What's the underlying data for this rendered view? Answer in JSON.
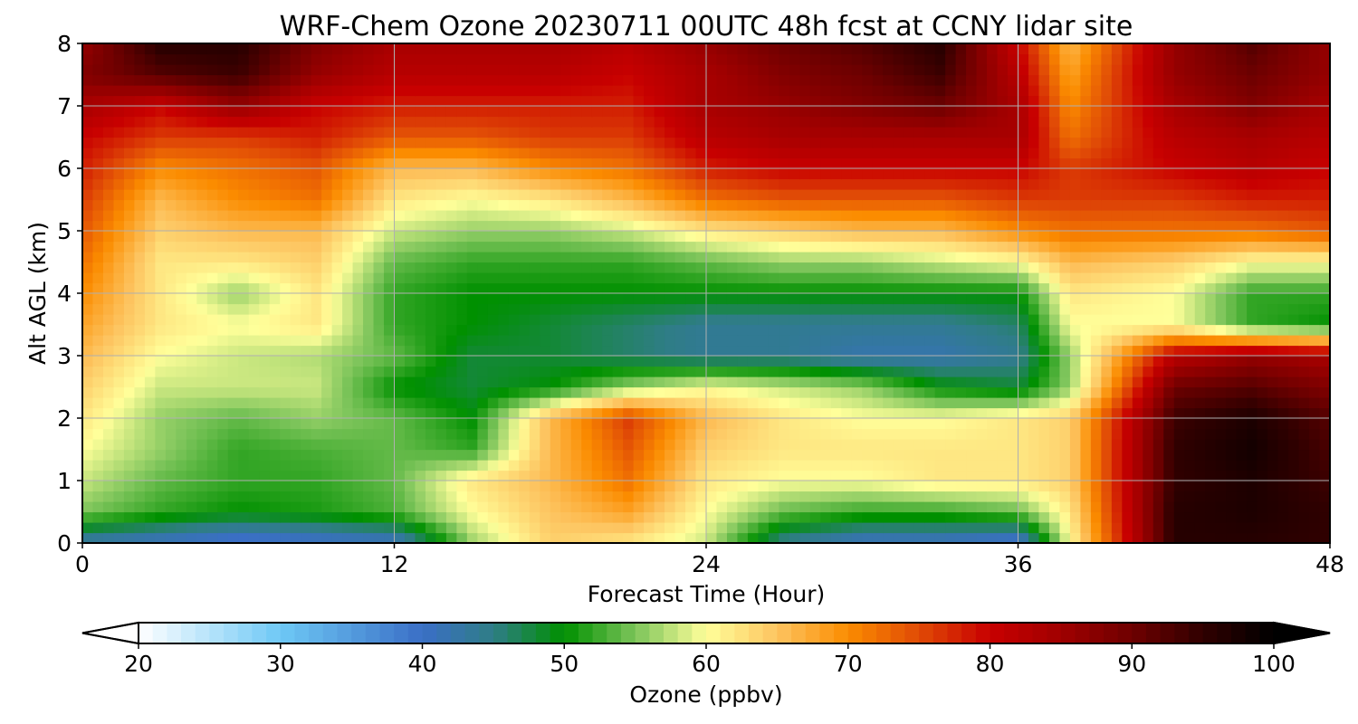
{
  "chart_data": {
    "type": "heatmap",
    "title": "WRF-Chem Ozone  20230711 00UTC 48h fcst at CCNY lidar site",
    "xlabel": "Forecast Time (Hour)",
    "ylabel": "Alt AGL (km)",
    "xlim": [
      0,
      48
    ],
    "ylim": [
      0,
      8
    ],
    "x_ticks": [
      "0",
      "12",
      "24",
      "36",
      "48"
    ],
    "y_ticks": [
      "0",
      "1",
      "2",
      "3",
      "4",
      "5",
      "6",
      "7",
      "8"
    ],
    "grid": true,
    "x": [
      0,
      3,
      6,
      9,
      12,
      15,
      18,
      21,
      24,
      27,
      30,
      33,
      36,
      38,
      42,
      45,
      48
    ],
    "y": [
      0,
      0.5,
      1,
      1.5,
      2,
      2.5,
      3,
      3.5,
      4,
      4.5,
      5,
      5.5,
      6,
      6.5,
      7,
      7.5,
      8
    ],
    "values": [
      [
        42,
        40,
        38,
        39,
        40,
        56,
        64,
        62,
        58,
        44,
        40,
        40,
        38,
        60,
        96,
        96,
        95
      ],
      [
        55,
        52,
        50,
        51,
        53,
        60,
        65,
        68,
        60,
        54,
        52,
        52,
        54,
        62,
        96,
        97,
        95
      ],
      [
        58,
        54,
        52,
        52,
        54,
        62,
        66,
        72,
        62,
        60,
        60,
        62,
        62,
        64,
        95,
        97,
        94
      ],
      [
        60,
        56,
        52,
        53,
        54,
        52,
        66,
        74,
        64,
        62,
        62,
        62,
        62,
        64,
        95,
        98,
        93
      ],
      [
        62,
        56,
        54,
        56,
        54,
        50,
        66,
        76,
        66,
        62,
        60,
        60,
        62,
        64,
        94,
        97,
        92
      ],
      [
        64,
        58,
        58,
        58,
        50,
        48,
        50,
        56,
        60,
        58,
        56,
        50,
        48,
        56,
        90,
        92,
        88
      ],
      [
        66,
        60,
        58,
        57,
        54,
        48,
        48,
        46,
        44,
        44,
        42,
        42,
        44,
        56,
        82,
        86,
        84
      ],
      [
        68,
        62,
        60,
        62,
        52,
        50,
        48,
        46,
        44,
        44,
        44,
        44,
        46,
        60,
        60,
        52,
        50
      ],
      [
        70,
        62,
        56,
        62,
        52,
        50,
        50,
        50,
        50,
        50,
        50,
        50,
        50,
        62,
        60,
        52,
        52
      ],
      [
        72,
        62,
        62,
        64,
        54,
        52,
        52,
        52,
        54,
        56,
        56,
        58,
        60,
        66,
        64,
        60,
        60
      ],
      [
        74,
        64,
        66,
        66,
        58,
        56,
        56,
        58,
        62,
        64,
        66,
        66,
        70,
        72,
        72,
        72,
        74
      ],
      [
        76,
        66,
        70,
        72,
        62,
        60,
        62,
        66,
        72,
        74,
        74,
        74,
        76,
        76,
        76,
        78,
        78
      ],
      [
        78,
        70,
        72,
        74,
        66,
        66,
        70,
        72,
        78,
        80,
        80,
        80,
        80,
        76,
        80,
        82,
        80
      ],
      [
        80,
        76,
        76,
        78,
        74,
        74,
        76,
        76,
        82,
        84,
        84,
        84,
        84,
        72,
        82,
        84,
        82
      ],
      [
        84,
        80,
        86,
        80,
        78,
        78,
        78,
        78,
        84,
        86,
        88,
        90,
        84,
        70,
        84,
        88,
        84
      ],
      [
        88,
        92,
        94,
        86,
        82,
        82,
        82,
        80,
        84,
        88,
        90,
        94,
        82,
        68,
        86,
        90,
        86
      ],
      [
        86,
        96,
        96,
        88,
        84,
        84,
        84,
        82,
        86,
        90,
        92,
        96,
        80,
        66,
        86,
        92,
        86
      ]
    ],
    "colorbar": {
      "label": "Ozone  (ppbv)",
      "range": [
        20,
        100
      ],
      "ticks": [
        "20",
        "30",
        "40",
        "50",
        "60",
        "70",
        "80",
        "90",
        "100"
      ],
      "extend": "both",
      "colors": [
        {
          "v": 20,
          "c": "#ffffff"
        },
        {
          "v": 30,
          "c": "#6ec8f5"
        },
        {
          "v": 40,
          "c": "#3a6fc6"
        },
        {
          "v": 45,
          "c": "#2f7d86"
        },
        {
          "v": 50,
          "c": "#009000"
        },
        {
          "v": 55,
          "c": "#7cc45a"
        },
        {
          "v": 60,
          "c": "#ffff9a"
        },
        {
          "v": 65,
          "c": "#fdc460"
        },
        {
          "v": 70,
          "c": "#fb8c00"
        },
        {
          "v": 75,
          "c": "#e04a06"
        },
        {
          "v": 80,
          "c": "#c80000"
        },
        {
          "v": 85,
          "c": "#a00000"
        },
        {
          "v": 90,
          "c": "#6e0000"
        },
        {
          "v": 95,
          "c": "#300000"
        },
        {
          "v": 100,
          "c": "#000000"
        }
      ]
    }
  }
}
